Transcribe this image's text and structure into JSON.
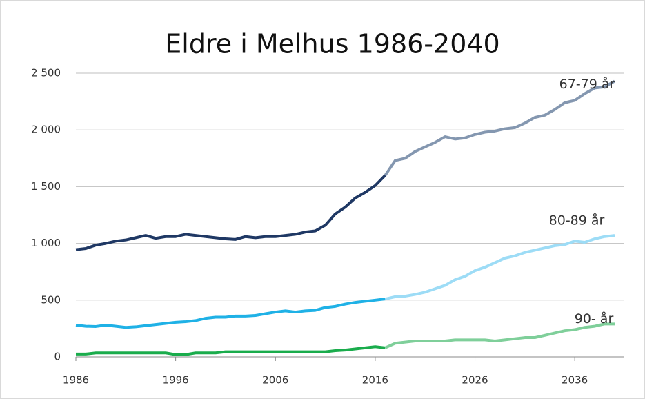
{
  "chart_data": {
    "type": "line",
    "title": "Eldre i Melhus 1986-2040",
    "x": [
      1986,
      1987,
      1988,
      1989,
      1990,
      1991,
      1992,
      1993,
      1994,
      1995,
      1996,
      1997,
      1998,
      1999,
      2000,
      2001,
      2002,
      2003,
      2004,
      2005,
      2006,
      2007,
      2008,
      2009,
      2010,
      2011,
      2012,
      2013,
      2014,
      2015,
      2016,
      2017,
      2018,
      2019,
      2020,
      2021,
      2022,
      2023,
      2024,
      2025,
      2026,
      2027,
      2028,
      2029,
      2030,
      2031,
      2032,
      2033,
      2034,
      2035,
      2036,
      2037,
      2038,
      2039,
      2040
    ],
    "xlim": [
      1986,
      2040
    ],
    "xticks": [
      1986,
      1996,
      2006,
      2016,
      2026,
      2036
    ],
    "ylim": [
      0,
      2500
    ],
    "yticks": [
      0,
      500,
      {
        "value": 1000,
        "label": "1 000"
      },
      {
        "value": 1500,
        "label": "1 500"
      },
      {
        "value": 2000,
        "label": "2 000"
      },
      {
        "value": 2500,
        "label": "2 500"
      }
    ],
    "grid": true,
    "series": [
      {
        "color": "#1f3864",
        "values": [
          945,
          955,
          985,
          1000,
          1020,
          1030,
          1050,
          1070,
          1045,
          1060,
          1060,
          1080,
          1070,
          1060,
          1050,
          1040,
          1035,
          1060,
          1050,
          1060,
          1060,
          1070,
          1080,
          1100,
          1110,
          1160,
          1260,
          1320,
          1400,
          1450,
          1510,
          1600,
          null,
          null,
          null,
          null,
          null,
          null,
          null,
          null,
          null,
          null,
          null,
          null,
          null,
          null,
          null,
          null,
          null,
          null,
          null,
          null,
          null,
          null,
          null
        ]
      },
      {
        "name": "67-79 år",
        "color": "#8497b0",
        "values": [
          null,
          null,
          null,
          null,
          null,
          null,
          null,
          null,
          null,
          null,
          null,
          null,
          null,
          null,
          null,
          null,
          null,
          null,
          null,
          null,
          null,
          null,
          null,
          null,
          null,
          null,
          null,
          null,
          null,
          null,
          null,
          1600,
          1730,
          1750,
          1810,
          1850,
          1890,
          1940,
          1920,
          1930,
          1960,
          1980,
          1990,
          2010,
          2020,
          2060,
          2110,
          2130,
          2180,
          2240,
          2260,
          2320,
          2370,
          2380,
          2430
        ]
      },
      {
        "color": "#1fb1e6",
        "values": [
          280,
          270,
          268,
          280,
          270,
          260,
          265,
          275,
          285,
          295,
          305,
          310,
          320,
          340,
          350,
          350,
          360,
          360,
          365,
          380,
          395,
          405,
          395,
          405,
          410,
          435,
          445,
          465,
          480,
          490,
          500,
          510,
          null,
          null,
          null,
          null,
          null,
          null,
          null,
          null,
          null,
          null,
          null,
          null,
          null,
          null,
          null,
          null,
          null,
          null,
          null,
          null,
          null,
          null,
          null
        ]
      },
      {
        "name": "80-89 år",
        "color": "#9ddcf6",
        "values": [
          null,
          null,
          null,
          null,
          null,
          null,
          null,
          null,
          null,
          null,
          null,
          null,
          null,
          null,
          null,
          null,
          null,
          null,
          null,
          null,
          null,
          null,
          null,
          null,
          null,
          null,
          null,
          null,
          null,
          null,
          null,
          510,
          530,
          535,
          550,
          570,
          600,
          630,
          680,
          710,
          760,
          790,
          830,
          870,
          890,
          920,
          940,
          960,
          980,
          990,
          1020,
          1010,
          1040,
          1060,
          1070
        ]
      },
      {
        "color": "#1aac4c",
        "values": [
          25,
          25,
          35,
          35,
          35,
          35,
          35,
          35,
          35,
          35,
          20,
          20,
          35,
          35,
          35,
          45,
          45,
          45,
          45,
          45,
          45,
          45,
          45,
          45,
          45,
          45,
          55,
          60,
          70,
          80,
          90,
          80,
          null,
          null,
          null,
          null,
          null,
          null,
          null,
          null,
          null,
          null,
          null,
          null,
          null,
          null,
          null,
          null,
          null,
          null,
          null,
          null,
          null,
          null,
          null
        ]
      },
      {
        "name": "90- år",
        "color": "#7fcf9a",
        "values": [
          null,
          null,
          null,
          null,
          null,
          null,
          null,
          null,
          null,
          null,
          null,
          null,
          null,
          null,
          null,
          null,
          null,
          null,
          null,
          null,
          null,
          null,
          null,
          null,
          null,
          null,
          null,
          null,
          null,
          null,
          null,
          80,
          120,
          130,
          140,
          140,
          140,
          140,
          150,
          150,
          150,
          150,
          140,
          150,
          160,
          170,
          170,
          190,
          210,
          230,
          240,
          260,
          270,
          290,
          290
        ]
      }
    ]
  }
}
